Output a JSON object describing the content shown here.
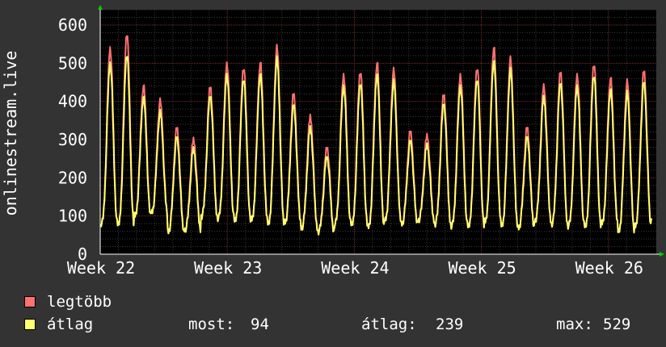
{
  "chart_data": {
    "type": "line",
    "title": "",
    "ylabel": "onlinestream.live",
    "xlabel": "",
    "ylim": [
      0,
      650
    ],
    "yticks": [
      0,
      100,
      200,
      300,
      400,
      500,
      600
    ],
    "x_ticks": [
      "Week 22",
      "Week 23",
      "Week 24",
      "Week 25",
      "Week 26"
    ],
    "x_range_weeks": [
      22,
      26.1
    ],
    "grid": true,
    "series": [
      {
        "name": "legtöbb",
        "color": "#ff7070",
        "daily_peaks": [
          540,
          580,
          440,
          400,
          330,
          300,
          440,
          500,
          490,
          500,
          540,
          420,
          360,
          280,
          470,
          480,
          500,
          480,
          320,
          310,
          420,
          470,
          490,
          540,
          510,
          330,
          440,
          480,
          470,
          500,
          460,
          450,
          480
        ]
      },
      {
        "name": "átlag",
        "color": "#ffff70",
        "daily_peaks": [
          500,
          525,
          410,
          370,
          305,
          275,
          415,
          470,
          460,
          470,
          510,
          390,
          330,
          255,
          440,
          450,
          470,
          450,
          295,
          285,
          395,
          440,
          460,
          505,
          480,
          305,
          410,
          450,
          440,
          470,
          430,
          420,
          450
        ]
      }
    ],
    "daily_troughs": [
      80,
      75,
      100,
      110,
      60,
      65,
      100,
      95,
      85,
      90,
      80,
      85,
      70,
      60,
      80,
      75,
      70,
      90,
      80,
      90,
      80,
      75,
      70,
      85,
      75,
      70,
      90,
      80,
      75,
      70,
      80,
      60,
      75
    ]
  },
  "legend": {
    "max_label": "legtöbb",
    "avg_label": "átlag",
    "stats": {
      "now_label": "most:",
      "now_value": "94",
      "avg_label": "átlag:",
      "avg_value": "239",
      "max_label": "max:",
      "max_value": "529"
    }
  },
  "colors": {
    "background": "#333333",
    "plot_background": "#000000",
    "grid_minor": "#3a3a3a",
    "grid_major": "#7a3030",
    "axis": "#ffffff",
    "arrow": "#00cc00"
  }
}
